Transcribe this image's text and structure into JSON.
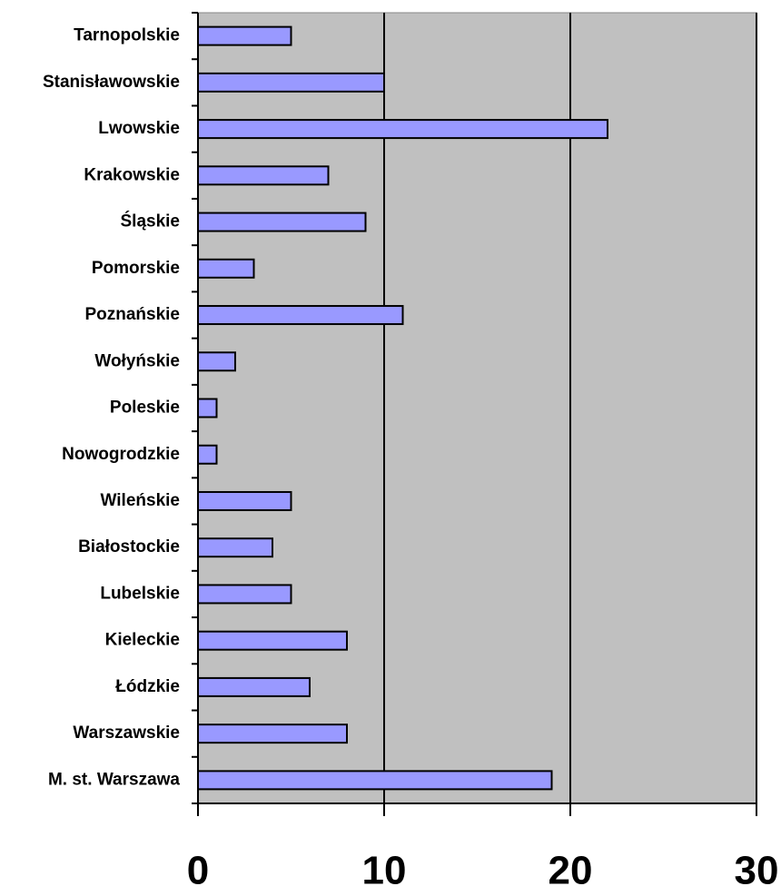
{
  "chart_data": {
    "type": "bar",
    "orientation": "horizontal",
    "categories": [
      "Tarnopolskie",
      "Stanisławowskie",
      "Lwowskie",
      "Krakowskie",
      "Śląskie",
      "Pomorskie",
      "Poznańskie",
      "Wołyńskie",
      "Poleskie",
      "Nowogrodzkie",
      "Wileńskie",
      "Białostockie",
      "Lubelskie",
      "Kieleckie",
      "Łódzkie",
      "Warszawskie",
      "M. st. Warszawa"
    ],
    "values": [
      5,
      10,
      22,
      7,
      9,
      3,
      11,
      2,
      1,
      1,
      5,
      4,
      5,
      8,
      6,
      8,
      19
    ],
    "color": "#9999ff",
    "plot_background": "#c0c0c0",
    "xlim": [
      0,
      30
    ],
    "xticks": [
      0,
      10,
      20,
      30
    ],
    "grid": true
  }
}
